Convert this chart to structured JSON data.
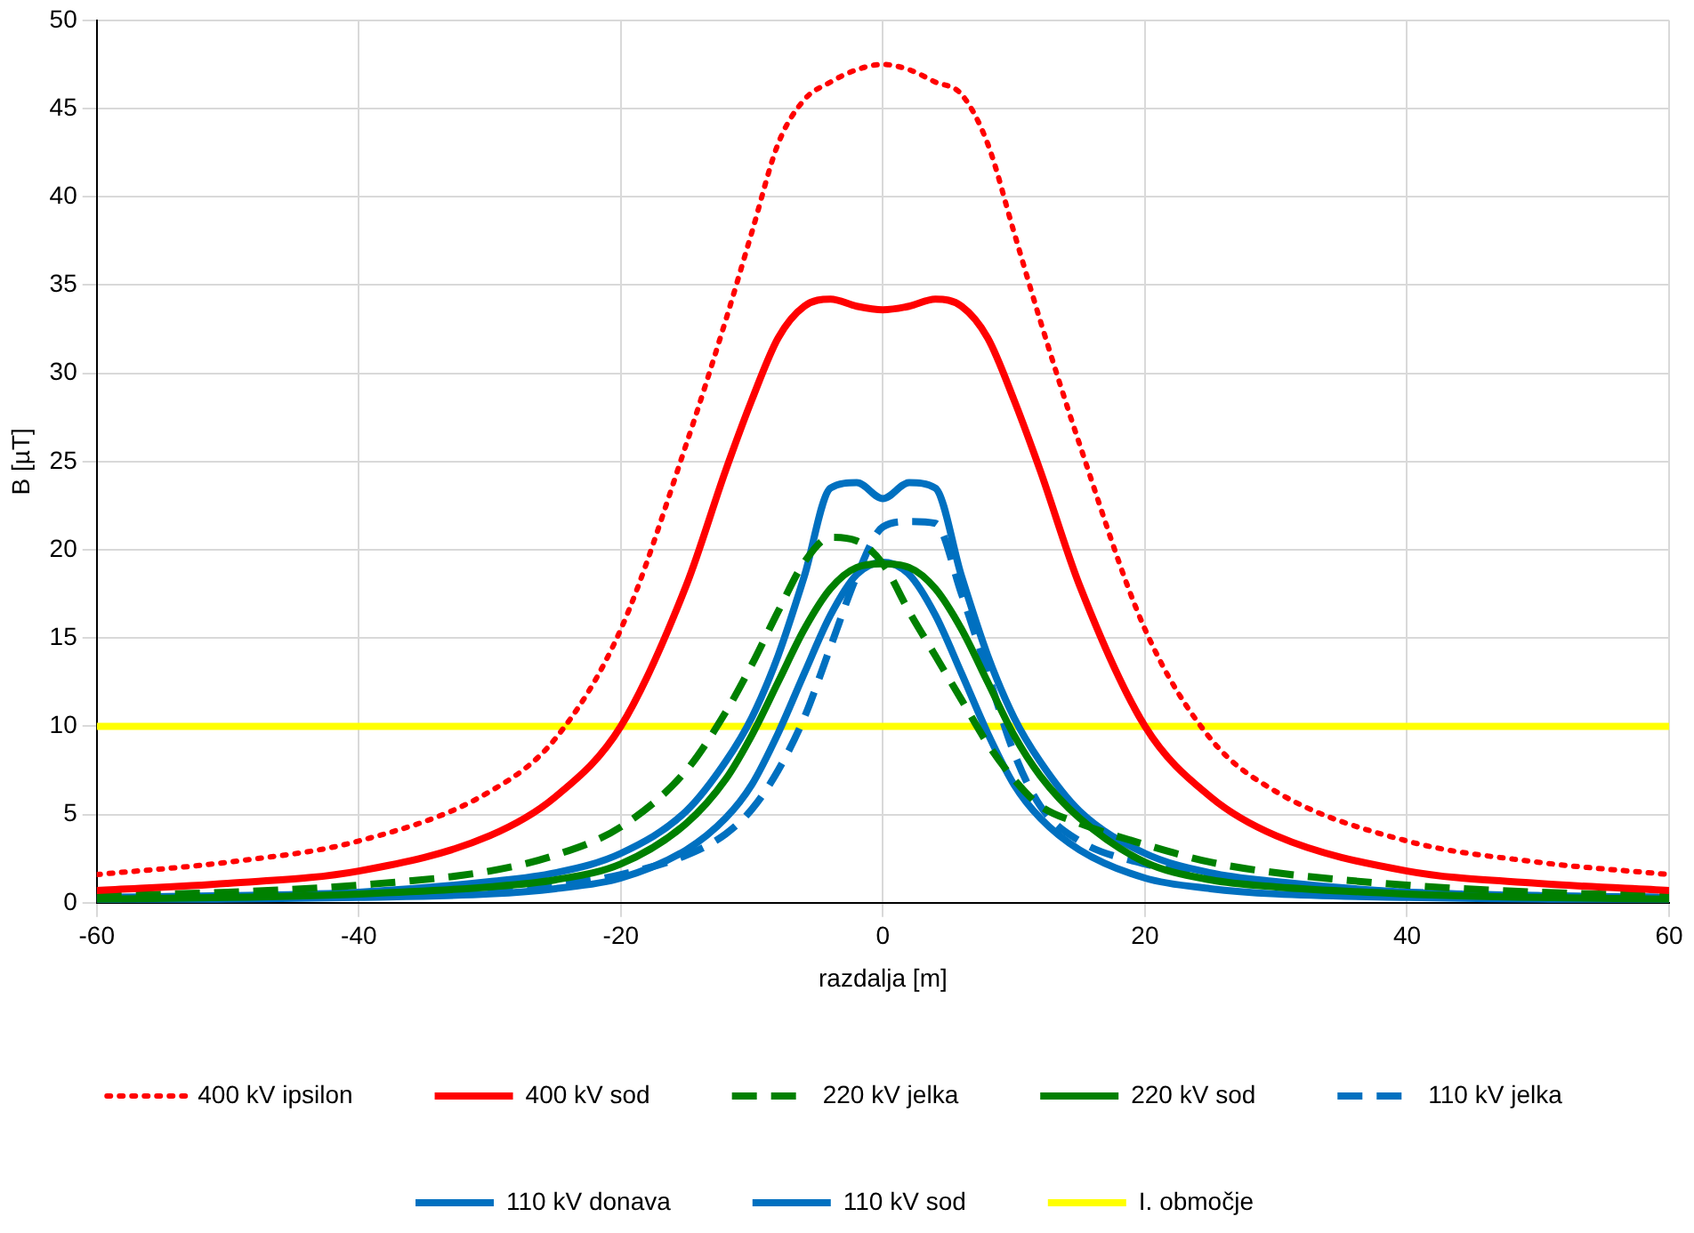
{
  "chart_data": {
    "type": "line",
    "xlabel": "razdalja [m]",
    "ylabel": "B [µT]",
    "x": [
      -60,
      -50,
      -40,
      -30,
      -25,
      -20,
      -15,
      -12,
      -10,
      -8,
      -6,
      -4,
      -2,
      0,
      2,
      4,
      6,
      8,
      10,
      12,
      15,
      20,
      25,
      30,
      40,
      50,
      60
    ],
    "xlim": [
      -60,
      60
    ],
    "xticks": [
      -60,
      -40,
      -20,
      0,
      20,
      40,
      60
    ],
    "ylim": [
      0,
      50
    ],
    "yticks": [
      0,
      5,
      10,
      15,
      20,
      25,
      30,
      35,
      40,
      45,
      50
    ],
    "grid": true,
    "legend": "bottom",
    "marker": "none",
    "series": [
      {
        "name": "400 kV ipsilon",
        "color": "#ff0000",
        "line_style": "dotted",
        "values": [
          1.6,
          2.3,
          3.5,
          6.3,
          9.3,
          15.5,
          26,
          33,
          38,
          43,
          45.5,
          46.5,
          47.2,
          47.5,
          47.2,
          46.5,
          45.8,
          43,
          38,
          33,
          26,
          15.5,
          9.3,
          6.3,
          3.5,
          2.3,
          1.6
        ]
      },
      {
        "name": "400 kV sod",
        "color": "#ff0000",
        "line_style": "solid",
        "values": [
          0.7,
          1.1,
          1.8,
          3.8,
          6,
          10,
          18,
          24.5,
          28.5,
          32,
          33.8,
          34.2,
          33.8,
          33.6,
          33.8,
          34.2,
          33.8,
          32,
          28.5,
          24.5,
          18,
          10,
          6,
          3.8,
          1.8,
          1.1,
          0.7
        ]
      },
      {
        "name": "220 kV jelka",
        "color": "#008000",
        "line_style": "dashed",
        "values": [
          0.4,
          0.6,
          1,
          1.8,
          2.7,
          4.3,
          7.5,
          10.8,
          13.5,
          16.5,
          19.3,
          20.7,
          20.5,
          19.2,
          16.5,
          14,
          11.5,
          9,
          7,
          5.5,
          4.5,
          3.3,
          2.3,
          1.7,
          1,
          0.6,
          0.4
        ]
      },
      {
        "name": "220 kV sod",
        "color": "#008000",
        "line_style": "solid",
        "values": [
          0.2,
          0.3,
          0.5,
          0.9,
          1.3,
          2.2,
          4.5,
          7,
          9.5,
          12.5,
          15.5,
          17.8,
          19,
          19.2,
          19,
          17.8,
          15.5,
          12.5,
          9.5,
          7.2,
          4.8,
          2.3,
          1.3,
          0.9,
          0.5,
          0.3,
          0.2
        ]
      },
      {
        "name": "110 kV jelka",
        "color": "#0070c0",
        "line_style": "dashed",
        "values": [
          0.2,
          0.3,
          0.4,
          0.7,
          1,
          1.6,
          2.7,
          3.9,
          5.3,
          7.5,
          10.5,
          14.5,
          18.5,
          21.3,
          21.6,
          21.5,
          17.5,
          13,
          8.5,
          5.5,
          3.5,
          2.2,
          1.5,
          1,
          0.6,
          0.4,
          0.3
        ]
      },
      {
        "name": "110 kV donava",
        "color": "#0070c0",
        "line_style": "solid",
        "values": [
          0.3,
          0.4,
          0.6,
          1.2,
          1.7,
          2.8,
          5.2,
          8,
          10.5,
          14,
          18.5,
          23.5,
          23.8,
          22.9,
          23.8,
          23.5,
          18.5,
          14,
          10.5,
          8,
          5.2,
          2.8,
          1.7,
          1.2,
          0.6,
          0.4,
          0.3
        ]
      },
      {
        "name": "110 kV sod",
        "color": "#0070c0",
        "line_style": "solid",
        "values": [
          0.1,
          0.2,
          0.3,
          0.5,
          0.8,
          1.4,
          3,
          4.8,
          6.7,
          9.6,
          13,
          16.3,
          18.6,
          19.3,
          18.6,
          16.3,
          13,
          9.6,
          6.7,
          4.8,
          3,
          1.4,
          0.8,
          0.5,
          0.3,
          0.2,
          0.1
        ]
      },
      {
        "name": "I. območje",
        "color": "#ffff00",
        "line_style": "solid",
        "x": [
          -60,
          60
        ],
        "values": [
          10,
          10
        ]
      }
    ]
  }
}
